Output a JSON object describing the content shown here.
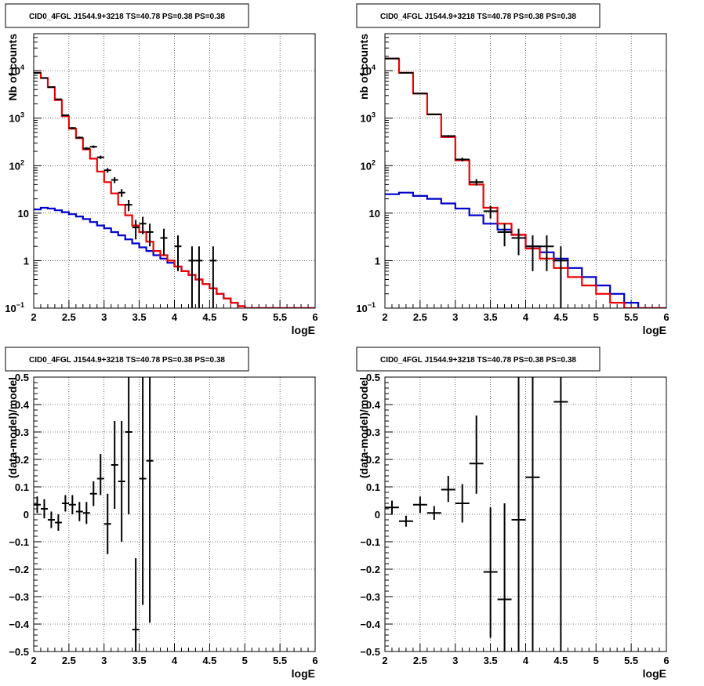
{
  "chart_data": [
    {
      "type": "line",
      "title": "CID0_4FGL J1544.9+3218 TS=40.78 PS=0.38 PS=0.38",
      "xlabel": "logE",
      "ylabel": "Nb of counts",
      "xlim": [
        2,
        6
      ],
      "ylim": [
        0.1,
        60000
      ],
      "yscale": "log",
      "xticks": [
        "2",
        "2.5",
        "3",
        "3.5",
        "4",
        "4.5",
        "5",
        "5.5",
        "6"
      ],
      "yticks": [
        {
          "v": 0.1,
          "label": "10",
          "exp": "−1"
        },
        {
          "v": 1,
          "label": "1",
          "exp": ""
        },
        {
          "v": 10,
          "label": "10",
          "exp": ""
        },
        {
          "v": 100,
          "label": "10",
          "exp": "2"
        },
        {
          "v": 1000,
          "label": "10",
          "exp": "3"
        },
        {
          "v": 10000,
          "label": "10",
          "exp": "4"
        }
      ],
      "grid": true,
      "series": [
        {
          "name": "",
          "style": "step",
          "color": "#0000cc",
          "bin_edges": [
            2.0,
            2.1,
            2.2,
            2.3,
            2.4,
            2.5,
            2.6,
            2.7,
            2.8,
            2.9,
            3.0,
            3.1,
            3.2,
            3.3,
            3.4,
            3.5,
            3.6,
            3.7,
            3.8,
            3.9,
            4.0,
            4.1,
            4.2,
            4.3,
            4.4,
            4.5,
            4.6,
            4.7,
            4.8,
            4.9,
            5.0,
            5.1,
            5.2,
            5.3,
            5.4,
            5.5,
            5.6,
            5.7,
            5.8,
            5.9,
            6.0
          ],
          "values": [
            12,
            13,
            12.5,
            11.5,
            10.5,
            9.5,
            8.5,
            7.5,
            6.5,
            5.5,
            4.8,
            4.0,
            3.4,
            2.8,
            2.3,
            1.9,
            1.6,
            1.3,
            1.1,
            0.9,
            0.75,
            0.6,
            0.5,
            0.4,
            0.32,
            0.26,
            0.2,
            0.16,
            0.13,
            0.11,
            0.1,
            0.1,
            0.1,
            0.1,
            0.1,
            0.1,
            0.1,
            0.1,
            0.1,
            0.1
          ]
        },
        {
          "name": "",
          "style": "step",
          "color": "#ee0000",
          "bin_edges": [
            2.0,
            2.1,
            2.2,
            2.3,
            2.4,
            2.5,
            2.6,
            2.7,
            2.8,
            2.9,
            3.0,
            3.1,
            3.2,
            3.3,
            3.4,
            3.5,
            3.6,
            3.7,
            3.8,
            3.9,
            4.0,
            4.1,
            4.2,
            4.3,
            4.4,
            4.5,
            4.6,
            4.7,
            4.8,
            4.9,
            5.0,
            5.1,
            5.2,
            5.3,
            5.4,
            5.5,
            5.6,
            5.7,
            5.8,
            5.9,
            6.0
          ],
          "values": [
            9000,
            7000,
            4500,
            2400,
            1100,
            600,
            380,
            220,
            140,
            75,
            45,
            26,
            15,
            9,
            5.5,
            4,
            2.5,
            1.6,
            1.3,
            1.0,
            0.75,
            0.6,
            0.5,
            0.4,
            0.32,
            0.26,
            0.2,
            0.16,
            0.13,
            0.11,
            0.1,
            0.1,
            0.1,
            0.1,
            0.1,
            0.1,
            0.1,
            0.1,
            0.1,
            0.1
          ]
        },
        {
          "name": "",
          "style": "errorbar",
          "color": "#000000",
          "x": [
            2.05,
            2.15,
            2.25,
            2.35,
            2.45,
            2.55,
            2.65,
            2.75,
            2.85,
            2.95,
            3.05,
            3.15,
            3.25,
            3.35,
            3.45,
            3.55,
            3.65,
            3.85,
            4.05,
            4.25,
            4.35,
            4.55
          ],
          "xerr": 0.05,
          "y": [
            9000,
            7000,
            4500,
            2500,
            1150,
            620,
            390,
            230,
            250,
            150,
            80,
            50,
            27,
            15,
            5,
            6,
            4,
            3,
            2,
            1,
            1,
            1
          ],
          "yerr_lo": [
            95,
            84,
            67,
            50,
            34,
            25,
            20,
            15,
            16,
            12,
            9,
            7,
            5,
            4,
            2.2,
            2.4,
            2,
            1.7,
            1.4,
            1,
            1,
            1
          ],
          "yerr_hi": [
            95,
            84,
            67,
            50,
            34,
            25,
            20,
            15,
            16,
            12,
            9,
            7,
            5,
            4,
            2.2,
            2.4,
            2,
            1.7,
            1.4,
            1,
            1,
            1
          ]
        }
      ]
    },
    {
      "type": "line",
      "title": "CID0_4FGL J1544.9+3218 TS=40.78 PS=0.38 PS=0.38",
      "xlabel": "logE",
      "ylabel": "nb of counts",
      "xlim": [
        2,
        6
      ],
      "ylim": [
        0.1,
        60000
      ],
      "yscale": "log",
      "xticks": [
        "2",
        "2.5",
        "3",
        "3.5",
        "4",
        "4.5",
        "5",
        "5.5",
        "6"
      ],
      "yticks": [
        {
          "v": 0.1,
          "label": "10",
          "exp": "−1"
        },
        {
          "v": 1,
          "label": "1",
          "exp": ""
        },
        {
          "v": 10,
          "label": "10",
          "exp": ""
        },
        {
          "v": 100,
          "label": "10",
          "exp": "2"
        },
        {
          "v": 1000,
          "label": "10",
          "exp": "3"
        },
        {
          "v": 10000,
          "label": "10",
          "exp": "4"
        }
      ],
      "grid": true,
      "series": [
        {
          "name": "",
          "style": "step",
          "color": "#0000cc",
          "bin_edges": [
            2.0,
            2.2,
            2.4,
            2.6,
            2.8,
            3.0,
            3.2,
            3.4,
            3.6,
            3.8,
            4.0,
            4.2,
            4.4,
            4.6,
            4.8,
            5.0,
            5.2,
            5.4,
            5.6,
            5.8,
            6.0
          ],
          "values": [
            25,
            27,
            23,
            20,
            16,
            12.5,
            9,
            6,
            4.5,
            3.5,
            2,
            1.5,
            1.1,
            0.7,
            0.45,
            0.3,
            0.2,
            0.13,
            0.1,
            0.1
          ]
        },
        {
          "name": "",
          "style": "step",
          "color": "#ee0000",
          "bin_edges": [
            2.0,
            2.2,
            2.4,
            2.6,
            2.8,
            3.0,
            3.2,
            3.4,
            3.6,
            3.8,
            4.0,
            4.2,
            4.4,
            4.6,
            4.8,
            5.0,
            5.2,
            5.4,
            5.6,
            5.8,
            6.0
          ],
          "values": [
            18000,
            9000,
            3300,
            1200,
            400,
            130,
            40,
            13,
            6,
            3.5,
            1.8,
            1.1,
            0.7,
            0.45,
            0.3,
            0.2,
            0.13,
            0.1,
            0.1,
            0.1
          ]
        },
        {
          "name": "",
          "style": "errorbar",
          "color": "#000000",
          "x": [
            2.1,
            2.3,
            2.5,
            2.7,
            2.9,
            3.1,
            3.3,
            3.5,
            3.7,
            3.9,
            4.1,
            4.3,
            4.5
          ],
          "xerr": 0.1,
          "y": [
            18000,
            9000,
            3300,
            1200,
            420,
            135,
            45,
            11,
            4,
            3,
            2,
            2,
            1
          ],
          "yerr_lo": [
            134,
            95,
            57,
            35,
            20,
            12,
            7,
            3.3,
            2,
            1.7,
            1.4,
            1.4,
            1
          ],
          "yerr_hi": [
            134,
            95,
            57,
            35,
            20,
            12,
            7,
            3.3,
            2,
            1.7,
            1.4,
            1.4,
            1
          ]
        }
      ]
    },
    {
      "type": "scatter",
      "title": "CID0_4FGL J1544.9+3218 TS=40.78 PS=0.38 PS=0.38",
      "xlabel": "logE",
      "ylabel": "(data-model)/model",
      "xlim": [
        2,
        6
      ],
      "ylim": [
        -0.5,
        0.5
      ],
      "yscale": "linear",
      "xticks": [
        "2",
        "2.5",
        "3",
        "3.5",
        "4",
        "4.5",
        "5",
        "5.5",
        "6"
      ],
      "yticks": [
        {
          "v": -0.5,
          "label": "−0.5",
          "exp": ""
        },
        {
          "v": -0.4,
          "label": "−0.4",
          "exp": ""
        },
        {
          "v": -0.3,
          "label": "−0.3",
          "exp": ""
        },
        {
          "v": -0.2,
          "label": "−0.2",
          "exp": ""
        },
        {
          "v": -0.1,
          "label": "−0.1",
          "exp": ""
        },
        {
          "v": 0,
          "label": "0",
          "exp": ""
        },
        {
          "v": 0.1,
          "label": "0.1",
          "exp": ""
        },
        {
          "v": 0.2,
          "label": "0.2",
          "exp": ""
        },
        {
          "v": 0.3,
          "label": "0.3",
          "exp": ""
        },
        {
          "v": 0.4,
          "label": "0.4",
          "exp": ""
        },
        {
          "v": 0.5,
          "label": "0.5",
          "exp": ""
        }
      ],
      "grid": true,
      "series": [
        {
          "name": "",
          "style": "errorbar",
          "color": "#000000",
          "x": [
            2.05,
            2.15,
            2.25,
            2.35,
            2.45,
            2.55,
            2.65,
            2.75,
            2.85,
            2.95,
            3.05,
            3.15,
            3.25,
            3.35,
            3.45,
            3.55,
            3.65
          ],
          "xerr": 0.05,
          "y": [
            0.035,
            0.02,
            -0.02,
            -0.03,
            0.04,
            0.035,
            0.01,
            0.005,
            0.075,
            0.13,
            -0.035,
            0.18,
            0.12,
            0.3,
            -0.42,
            0.13,
            0.195
          ],
          "yerr_lo": [
            0.03,
            0.035,
            0.03,
            0.03,
            0.03,
            0.035,
            0.035,
            0.04,
            0.045,
            0.06,
            0.11,
            0.16,
            0.22,
            0.3,
            0.25,
            0.46,
            0.59
          ],
          "yerr_hi": [
            0.03,
            0.035,
            0.03,
            0.03,
            0.03,
            0.035,
            0.035,
            0.04,
            0.045,
            0.09,
            0.11,
            0.16,
            0.22,
            0.2,
            0.26,
            0.37,
            0.305
          ]
        }
      ]
    },
    {
      "type": "scatter",
      "title": "CID0_4FGL J1544.9+3218 TS=40.78 PS=0.38 PS=0.38",
      "xlabel": "logE",
      "ylabel": "(data-model)/model",
      "xlim": [
        2,
        6
      ],
      "ylim": [
        -0.5,
        0.5
      ],
      "yscale": "linear",
      "xticks": [
        "2",
        "2.5",
        "3",
        "3.5",
        "4",
        "4.5",
        "5",
        "5.5",
        "6"
      ],
      "yticks": [
        {
          "v": -0.5,
          "label": "−0.5",
          "exp": ""
        },
        {
          "v": -0.4,
          "label": "−0.4",
          "exp": ""
        },
        {
          "v": -0.3,
          "label": "−0.3",
          "exp": ""
        },
        {
          "v": -0.2,
          "label": "−0.2",
          "exp": ""
        },
        {
          "v": -0.1,
          "label": "−0.1",
          "exp": ""
        },
        {
          "v": 0,
          "label": "0",
          "exp": ""
        },
        {
          "v": 0.1,
          "label": "0.1",
          "exp": ""
        },
        {
          "v": 0.2,
          "label": "0.2",
          "exp": ""
        },
        {
          "v": 0.3,
          "label": "0.3",
          "exp": ""
        },
        {
          "v": 0.4,
          "label": "0.4",
          "exp": ""
        },
        {
          "v": 0.5,
          "label": "0.5",
          "exp": ""
        }
      ],
      "grid": true,
      "series": [
        {
          "name": "",
          "style": "errorbar",
          "color": "#000000",
          "x": [
            2.1,
            2.3,
            2.5,
            2.7,
            2.9,
            3.1,
            3.3,
            3.5,
            3.7,
            3.9,
            4.1,
            4.5
          ],
          "xerr": 0.1,
          "y": [
            0.025,
            -0.025,
            0.035,
            0.005,
            0.09,
            0.04,
            0.185,
            -0.21,
            -0.31,
            -0.02,
            0.135,
            0.41
          ],
          "yerr_lo": [
            0.025,
            0.02,
            0.03,
            0.025,
            0.045,
            0.07,
            0.11,
            0.24,
            0.19,
            0.48,
            0.64,
            0.91
          ],
          "yerr_hi": [
            0.025,
            0.02,
            0.03,
            0.025,
            0.05,
            0.07,
            0.175,
            0.235,
            0.35,
            0.52,
            0.365,
            0.09
          ]
        }
      ]
    }
  ]
}
